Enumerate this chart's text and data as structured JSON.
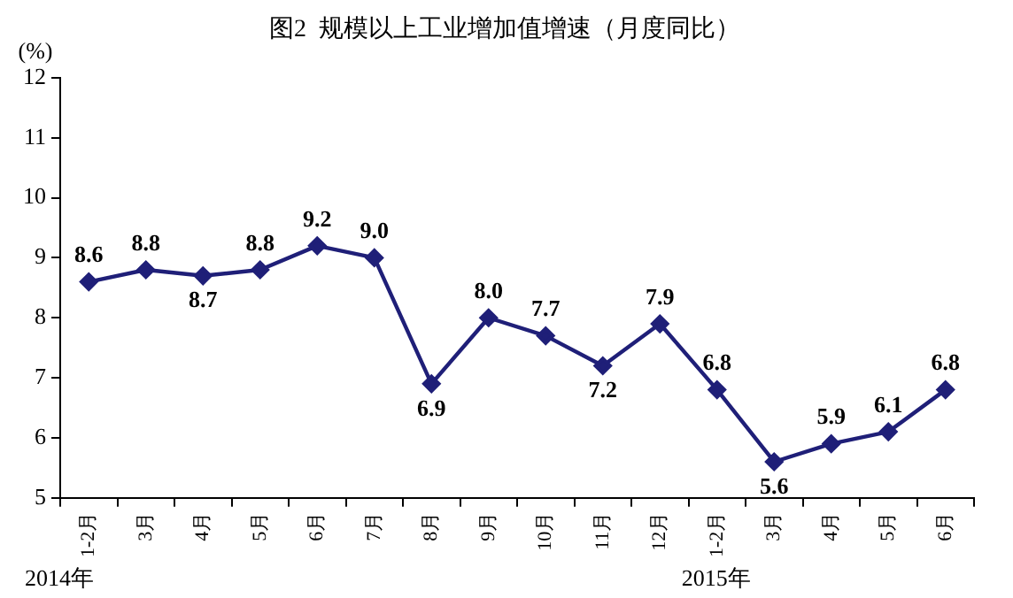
{
  "chart_data": {
    "type": "line",
    "title": "图2  规模以上工业增加值增速（月度同比）",
    "ylabel": "(%)",
    "categories": [
      "1-2月",
      "3月",
      "4月",
      "5月",
      "6月",
      "7月",
      "8月",
      "9月",
      "10月",
      "11月",
      "12月",
      "1-2月",
      "3月",
      "4月",
      "5月",
      "6月"
    ],
    "series": [
      {
        "color": "#1f1f78",
        "values": [
          8.6,
          8.8,
          8.7,
          8.8,
          9.2,
          9.0,
          6.9,
          8.0,
          7.7,
          7.2,
          7.9,
          6.8,
          5.6,
          5.9,
          6.1,
          6.8
        ]
      }
    ],
    "ylim": [
      5,
      12
    ],
    "yticks": [
      5,
      6,
      7,
      8,
      9,
      10,
      11,
      12
    ],
    "grid": false,
    "legend": false,
    "marker": "diamond",
    "line_style": "solid",
    "value_labels": [
      "8.6",
      "8.8",
      "8.7",
      "8.8",
      "9.2",
      "9.0",
      "6.9",
      "8.0",
      "7.7",
      "7.2",
      "7.9",
      "6.8",
      "5.6",
      "5.9",
      "6.1",
      "6.8"
    ],
    "annotations": [
      "2014年",
      "2015年"
    ]
  }
}
